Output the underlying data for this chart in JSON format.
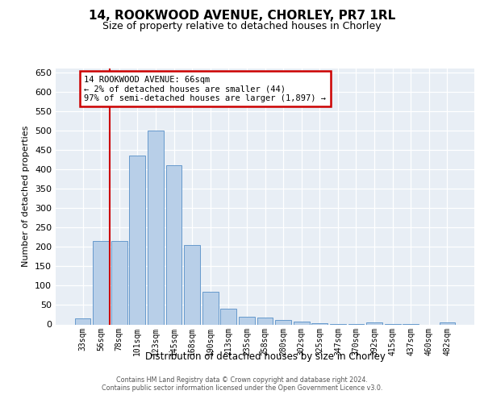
{
  "title": "14, ROOKWOOD AVENUE, CHORLEY, PR7 1RL",
  "subtitle": "Size of property relative to detached houses in Chorley",
  "xlabel": "Distribution of detached houses by size in Chorley",
  "ylabel": "Number of detached properties",
  "categories": [
    "33sqm",
    "56sqm",
    "78sqm",
    "101sqm",
    "123sqm",
    "145sqm",
    "168sqm",
    "190sqm",
    "213sqm",
    "235sqm",
    "258sqm",
    "280sqm",
    "302sqm",
    "325sqm",
    "347sqm",
    "370sqm",
    "392sqm",
    "415sqm",
    "437sqm",
    "460sqm",
    "482sqm"
  ],
  "bar_values": [
    15,
    215,
    215,
    435,
    500,
    410,
    205,
    85,
    40,
    20,
    18,
    12,
    8,
    4,
    1,
    1,
    5,
    1,
    1,
    0,
    5
  ],
  "bar_color": "#b8cfe8",
  "bar_edge_color": "#6699cc",
  "vline_color": "#cc0000",
  "vline_x_idx": 1.5,
  "annotation_text": "14 ROOKWOOD AVENUE: 66sqm\n← 2% of detached houses are smaller (44)\n97% of semi-detached houses are larger (1,897) →",
  "annotation_box_facecolor": "#ffffff",
  "annotation_box_edgecolor": "#cc0000",
  "ylim": [
    0,
    660
  ],
  "yticks": [
    0,
    50,
    100,
    150,
    200,
    250,
    300,
    350,
    400,
    450,
    500,
    550,
    600,
    650
  ],
  "plot_bg_color": "#e8eef5",
  "grid_color": "#ffffff",
  "footer_line1": "Contains HM Land Registry data © Crown copyright and database right 2024.",
  "footer_line2": "Contains public sector information licensed under the Open Government Licence v3.0."
}
